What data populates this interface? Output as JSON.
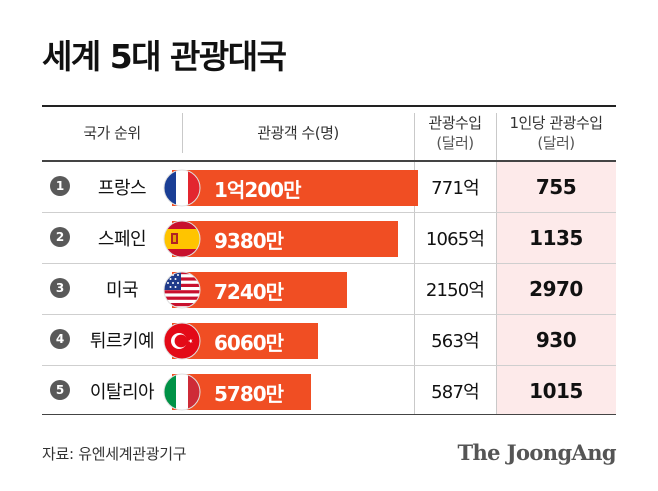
{
  "title": "세계 5대 관광대국",
  "headers": {
    "rank_country": "국가 순위",
    "visitors": "관광객 수(명)",
    "revenue_line1": "관광수입",
    "revenue_line2": "(달러)",
    "percap_line1": "1인당 관광수입",
    "percap_line2": "(달러)"
  },
  "chart_data": {
    "type": "bar",
    "orientation": "horizontal",
    "categories": [
      "프랑스",
      "스페인",
      "미국",
      "튀르키예",
      "이탈리아"
    ],
    "series": [
      {
        "name": "관광객 수(명)",
        "values": [
          102000000,
          93800000,
          72400000,
          60600000,
          57800000
        ]
      }
    ],
    "data_labels": [
      "1억200만",
      "9380만",
      "7240만",
      "6060만",
      "5780만"
    ],
    "value_max": 102000000
  },
  "rows": [
    {
      "rank": "1",
      "country": "프랑스",
      "flag": "france-flag-icon",
      "visitors_label": "1억200만",
      "revenue": "771억",
      "per_capita": "755"
    },
    {
      "rank": "2",
      "country": "스페인",
      "flag": "spain-flag-icon",
      "visitors_label": "9380만",
      "revenue": "1065억",
      "per_capita": "1135"
    },
    {
      "rank": "3",
      "country": "미국",
      "flag": "usa-flag-icon",
      "visitors_label": "7240만",
      "revenue": "2150억",
      "per_capita": "2970"
    },
    {
      "rank": "4",
      "country": "튀르키예",
      "flag": "turkey-flag-icon",
      "visitors_label": "6060만",
      "revenue": "563억",
      "per_capita": "930"
    },
    {
      "rank": "5",
      "country": "이탈리아",
      "flag": "italy-flag-icon",
      "visitors_label": "5780만",
      "revenue": "587억",
      "per_capita": "1015"
    }
  ],
  "source": "자료: 유엔세계관광기구",
  "logo": "The JoongAng",
  "colors": {
    "bar": "#f04e23",
    "highlight_column": "#fdeaea",
    "rank_badge": "#595959"
  }
}
